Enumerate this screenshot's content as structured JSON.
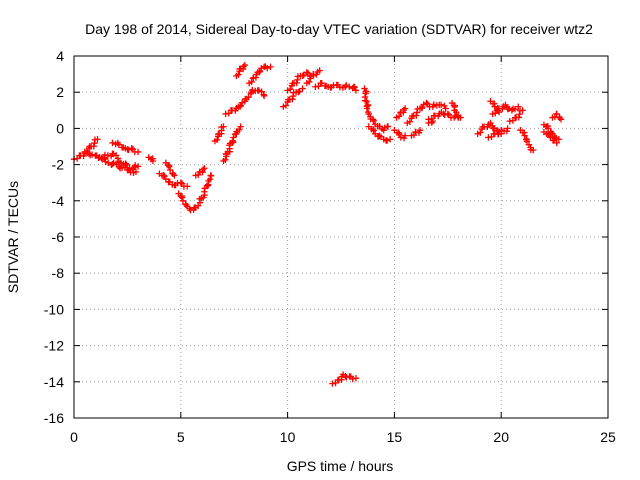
{
  "chart_data": {
    "type": "scatter",
    "title": "Day 198 of 2014, Sidereal Day-to-day VTEC variation (SDTVAR) for receiver wtz2",
    "xlabel": "GPS time / hours",
    "ylabel": "SDTVAR / TECUs",
    "xlim": [
      0,
      25
    ],
    "ylim": [
      -16,
      4
    ],
    "xticks": [
      0,
      5,
      10,
      15,
      20,
      25
    ],
    "yticks": [
      4,
      2,
      0,
      -2,
      -4,
      -6,
      -8,
      -10,
      -12,
      -14,
      -16
    ],
    "grid": true,
    "marker": "plus",
    "color": "#ff0000",
    "segments": [
      [
        [
          0.0,
          -1.7
        ],
        [
          0.3,
          -1.5
        ],
        [
          0.6,
          -1.3
        ],
        [
          1.0,
          -1.5
        ],
        [
          1.4,
          -1.6
        ],
        [
          1.8,
          -1.4
        ],
        [
          2.2,
          -1.9
        ],
        [
          2.6,
          -2.2
        ],
        [
          3.0,
          -2.1
        ]
      ],
      [
        [
          0.5,
          -1.3
        ],
        [
          0.8,
          -1.0
        ],
        [
          1.1,
          -0.6
        ]
      ],
      [
        [
          1.2,
          -1.6
        ],
        [
          1.6,
          -1.9
        ],
        [
          2.0,
          -2.0
        ],
        [
          2.5,
          -2.3
        ],
        [
          2.9,
          -2.4
        ]
      ],
      [
        [
          1.8,
          -0.8
        ],
        [
          2.1,
          -0.9
        ],
        [
          2.4,
          -1.1
        ],
        [
          2.7,
          -1.1
        ],
        [
          3.0,
          -1.3
        ]
      ],
      [
        [
          3.5,
          -1.6
        ],
        [
          3.7,
          -1.8
        ]
      ],
      [
        [
          4.0,
          -2.5
        ],
        [
          4.3,
          -2.8
        ],
        [
          4.6,
          -3.1
        ],
        [
          5.0,
          -3.0
        ],
        [
          5.3,
          -3.2
        ]
      ],
      [
        [
          4.3,
          -1.9
        ],
        [
          4.5,
          -2.3
        ],
        [
          4.7,
          -2.6
        ]
      ],
      [
        [
          4.9,
          -3.6
        ],
        [
          5.1,
          -4.0
        ],
        [
          5.3,
          -4.3
        ],
        [
          5.6,
          -4.5
        ],
        [
          5.9,
          -4.1
        ],
        [
          6.1,
          -3.5
        ],
        [
          6.3,
          -2.9
        ],
        [
          6.4,
          -2.6
        ]
      ],
      [
        [
          5.7,
          -2.6
        ],
        [
          5.9,
          -2.4
        ],
        [
          6.1,
          -2.2
        ]
      ],
      [
        [
          6.6,
          -0.7
        ],
        [
          6.8,
          -0.3
        ],
        [
          7.0,
          0.1
        ]
      ],
      [
        [
          7.0,
          -1.8
        ],
        [
          7.2,
          -1.3
        ],
        [
          7.4,
          -0.8
        ],
        [
          7.6,
          -0.3
        ],
        [
          7.8,
          0.1
        ]
      ],
      [
        [
          7.1,
          0.8
        ],
        [
          7.4,
          1.0
        ],
        [
          7.7,
          1.2
        ],
        [
          8.0,
          1.5
        ],
        [
          8.3,
          2.0
        ],
        [
          8.6,
          2.1
        ],
        [
          8.9,
          1.8
        ]
      ],
      [
        [
          7.6,
          2.9
        ],
        [
          7.8,
          3.3
        ],
        [
          8.0,
          3.5
        ]
      ],
      [
        [
          8.2,
          2.5
        ],
        [
          8.4,
          2.8
        ],
        [
          8.6,
          3.1
        ],
        [
          8.9,
          3.4
        ],
        [
          9.2,
          3.4
        ]
      ],
      [
        [
          9.8,
          1.2
        ],
        [
          10.1,
          1.6
        ],
        [
          10.4,
          2.0
        ],
        [
          10.7,
          2.2
        ]
      ],
      [
        [
          10.0,
          2.1
        ],
        [
          10.3,
          2.5
        ],
        [
          10.6,
          2.9
        ],
        [
          10.9,
          3.1
        ],
        [
          11.2,
          2.9
        ]
      ],
      [
        [
          10.9,
          2.5
        ],
        [
          11.2,
          3.0
        ],
        [
          11.5,
          3.2
        ]
      ],
      [
        [
          11.3,
          2.3
        ],
        [
          11.6,
          2.5
        ],
        [
          11.9,
          2.3
        ],
        [
          12.3,
          2.4
        ],
        [
          12.7,
          2.3
        ],
        [
          13.1,
          2.3
        ],
        [
          13.2,
          2.1
        ]
      ],
      [
        [
          12.1,
          -14.1
        ],
        [
          12.4,
          -13.9
        ],
        [
          12.6,
          -13.6
        ],
        [
          12.9,
          -13.7
        ],
        [
          13.2,
          -13.8
        ]
      ],
      [
        [
          13.6,
          2.2
        ],
        [
          13.7,
          1.5
        ],
        [
          13.8,
          0.8
        ],
        [
          14.0,
          0.5
        ],
        [
          14.3,
          0.1
        ],
        [
          14.5,
          -0.1
        ],
        [
          14.7,
          0.1
        ]
      ],
      [
        [
          13.8,
          0.1
        ],
        [
          14.1,
          -0.3
        ],
        [
          14.5,
          -0.6
        ],
        [
          14.8,
          -0.6
        ]
      ],
      [
        [
          15.0,
          -0.1
        ],
        [
          15.3,
          -0.5
        ],
        [
          15.5,
          -0.4
        ]
      ],
      [
        [
          15.1,
          0.6
        ],
        [
          15.3,
          0.9
        ],
        [
          15.5,
          1.1
        ]
      ],
      [
        [
          15.6,
          0.3
        ],
        [
          15.9,
          0.7
        ],
        [
          16.2,
          1.1
        ],
        [
          16.5,
          1.4
        ],
        [
          16.8,
          1.2
        ],
        [
          17.1,
          1.3
        ],
        [
          17.4,
          1.1
        ]
      ],
      [
        [
          15.8,
          -0.4
        ],
        [
          16.0,
          -0.2
        ],
        [
          16.2,
          -0.1
        ]
      ],
      [
        [
          16.6,
          0.5
        ],
        [
          16.9,
          0.7
        ],
        [
          17.2,
          0.9
        ],
        [
          17.5,
          0.8
        ],
        [
          17.8,
          0.6
        ],
        [
          18.1,
          0.6
        ]
      ],
      [
        [
          16.6,
          0.3
        ],
        [
          16.8,
          0.4
        ]
      ],
      [
        [
          17.7,
          1.4
        ],
        [
          17.9,
          0.9
        ],
        [
          18.0,
          0.6
        ]
      ],
      [
        [
          18.9,
          -0.3
        ],
        [
          19.2,
          0.1
        ],
        [
          19.5,
          0.3
        ],
        [
          19.8,
          -0.1
        ],
        [
          20.0,
          -0.3
        ],
        [
          20.3,
          0.0
        ]
      ],
      [
        [
          19.4,
          -0.5
        ],
        [
          19.7,
          -0.3
        ],
        [
          20.0,
          -0.1
        ]
      ],
      [
        [
          19.5,
          1.5
        ],
        [
          19.7,
          1.2
        ],
        [
          19.9,
          0.9
        ]
      ],
      [
        [
          19.6,
          0.8
        ],
        [
          19.9,
          1.1
        ],
        [
          20.2,
          1.3
        ],
        [
          20.5,
          1.0
        ],
        [
          20.8,
          1.2
        ]
      ],
      [
        [
          20.4,
          0.4
        ],
        [
          20.7,
          0.6
        ],
        [
          21.0,
          1.0
        ]
      ],
      [
        [
          20.9,
          -0.1
        ],
        [
          21.1,
          -0.4
        ],
        [
          21.3,
          -0.9
        ],
        [
          21.5,
          -1.2
        ]
      ],
      [
        [
          22.0,
          0.2
        ],
        [
          22.2,
          0.0
        ],
        [
          22.4,
          -0.3
        ],
        [
          22.7,
          -0.6
        ]
      ],
      [
        [
          22.0,
          -0.2
        ],
        [
          22.3,
          -0.5
        ],
        [
          22.6,
          -0.8
        ]
      ],
      [
        [
          22.4,
          0.6
        ],
        [
          22.6,
          0.8
        ],
        [
          22.8,
          0.5
        ]
      ]
    ]
  }
}
